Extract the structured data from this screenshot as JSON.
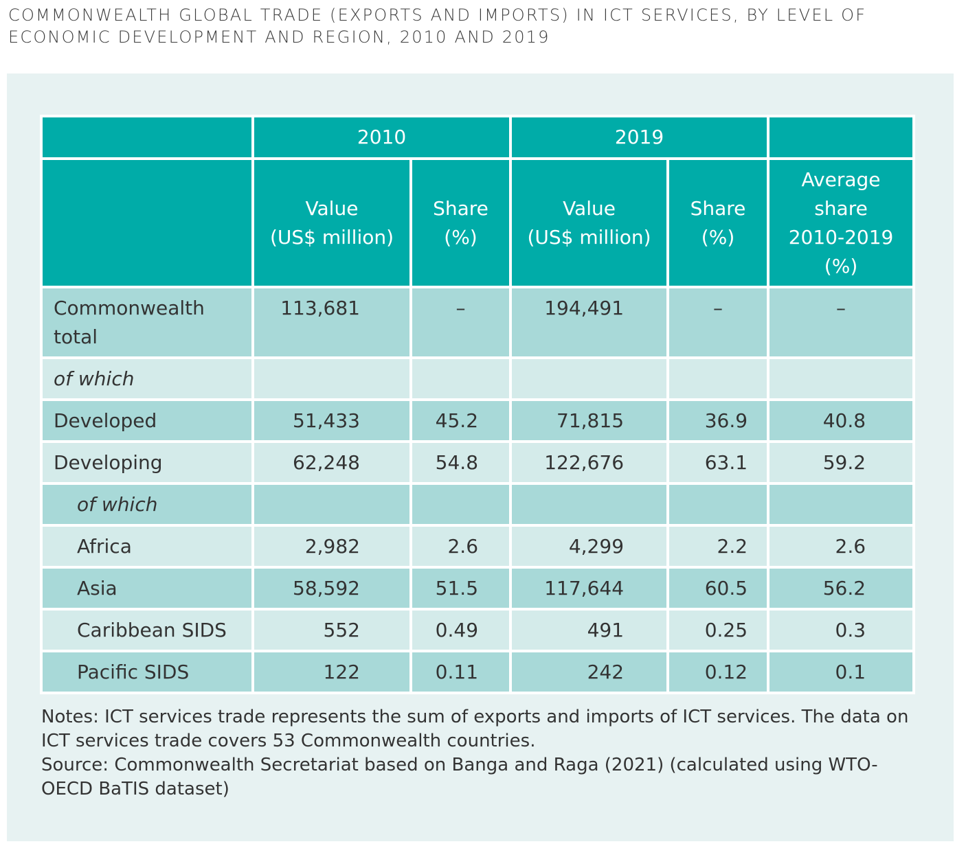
{
  "title": "COMMONWEALTH GLOBAL TRADE (EXPORTS AND IMPORTS) IN ICT SERVICES, BY LEVEL OF ECONOMIC DEVELOPMENT AND REGION, 2010 AND 2019",
  "table": {
    "groups": [
      "2010",
      "2019"
    ],
    "columns": [
      {
        "lines": [
          "Value",
          "(US$ million)"
        ]
      },
      {
        "lines": [
          "Share",
          "(%)"
        ]
      },
      {
        "lines": [
          "Value",
          "(US$ million)"
        ]
      },
      {
        "lines": [
          "Share",
          "(%)"
        ]
      },
      {
        "lines": [
          "Average",
          "share",
          "2010-2019",
          "(%)"
        ]
      }
    ],
    "rows": [
      {
        "label": "Commonwealth total",
        "cells": [
          "113,681",
          "–",
          "194,491",
          "–",
          "–"
        ]
      },
      {
        "subhead": "of which"
      },
      {
        "label": "Developed",
        "cells": [
          "51,433",
          "45.2",
          "71,815",
          "36.9",
          "40.8"
        ]
      },
      {
        "label": "Developing",
        "cells": [
          "62,248",
          "54.8",
          "122,676",
          "63.1",
          "59.2"
        ]
      },
      {
        "subhead": "of which",
        "level": 1
      },
      {
        "label": "Africa",
        "level": 1,
        "cells": [
          "2,982",
          "2.6",
          "4,299",
          "2.2",
          "2.6"
        ]
      },
      {
        "label": "Asia",
        "level": 1,
        "cells": [
          "58,592",
          "51.5",
          "117,644",
          "60.5",
          "56.2"
        ]
      },
      {
        "label": "Caribbean SIDS",
        "level": 1,
        "cells": [
          "552",
          "0.49",
          "491",
          "0.25",
          "0.3"
        ]
      },
      {
        "label": "Pacific SIDS",
        "level": 1,
        "cells": [
          "122",
          "0.11",
          "242",
          "0.12",
          "0.1"
        ]
      }
    ]
  },
  "notes": [
    "Notes: ICT services trade represents the sum of exports and imports of ICT services. The data on ICT services trade covers 53 Commonwealth countries.",
    "Source: Commonwealth Secretariat based on Banga and Raga (2021) (calculated using WTO-OECD BaTIS dataset)"
  ]
}
